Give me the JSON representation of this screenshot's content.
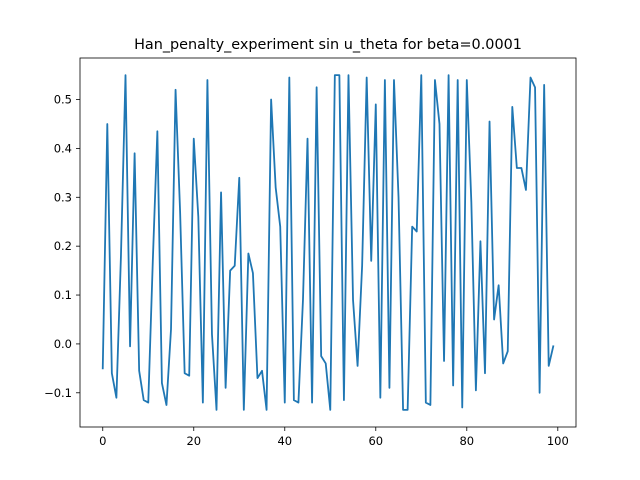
{
  "chart_data": {
    "type": "line",
    "title": "Han_penalty_experiment sin u_theta for beta=0.0001",
    "xlabel": "",
    "ylabel": "",
    "xlim": [
      -5,
      104
    ],
    "ylim": [
      -0.17,
      0.585
    ],
    "xticks": [
      0,
      20,
      40,
      60,
      80,
      100
    ],
    "yticks": [
      -0.1,
      0.0,
      0.1,
      0.2,
      0.3,
      0.4,
      0.5
    ],
    "ytick_labels": [
      "−0.1",
      "0.0",
      "0.1",
      "0.2",
      "0.3",
      "0.4",
      "0.5"
    ],
    "grid": false,
    "series": [
      {
        "color": "#1f77b4",
        "x": [
          0,
          1,
          2,
          3,
          4,
          5,
          6,
          7,
          8,
          9,
          10,
          11,
          12,
          13,
          14,
          15,
          16,
          17,
          18,
          19,
          20,
          21,
          22,
          23,
          24,
          25,
          26,
          27,
          28,
          29,
          30,
          31,
          32,
          33,
          34,
          35,
          36,
          37,
          38,
          39,
          40,
          41,
          42,
          43,
          44,
          45,
          46,
          47,
          48,
          49,
          50,
          51,
          52,
          53,
          54,
          55,
          56,
          57,
          58,
          59,
          60,
          61,
          62,
          63,
          64,
          65,
          66,
          67,
          68,
          69,
          70,
          71,
          72,
          73,
          74,
          75,
          76,
          77,
          78,
          79,
          80,
          81,
          82,
          83,
          84,
          85,
          86,
          87,
          88,
          89,
          90,
          91,
          92,
          93,
          94,
          95,
          96,
          97,
          98,
          99
        ],
        "values": [
          -0.05,
          0.45,
          -0.06,
          -0.11,
          0.18,
          0.55,
          -0.005,
          0.39,
          -0.055,
          -0.115,
          -0.12,
          0.17,
          0.435,
          -0.08,
          -0.125,
          0.03,
          0.52,
          0.27,
          -0.06,
          -0.065,
          0.42,
          0.26,
          -0.12,
          0.54,
          0.02,
          -0.135,
          0.31,
          -0.09,
          0.15,
          0.16,
          0.34,
          -0.135,
          0.185,
          0.145,
          -0.07,
          -0.055,
          -0.135,
          0.5,
          0.32,
          0.24,
          -0.12,
          0.545,
          -0.115,
          -0.12,
          0.09,
          0.42,
          -0.12,
          0.525,
          -0.025,
          -0.04,
          -0.135,
          0.55,
          0.55,
          -0.115,
          0.55,
          0.09,
          -0.045,
          0.16,
          0.545,
          0.17,
          0.49,
          -0.11,
          0.54,
          -0.09,
          0.54,
          0.3,
          -0.135,
          -0.135,
          0.24,
          0.23,
          0.55,
          -0.12,
          -0.125,
          0.54,
          0.45,
          -0.035,
          0.55,
          -0.085,
          0.54,
          -0.13,
          0.54,
          0.29,
          -0.095,
          0.21,
          -0.06,
          0.455,
          0.05,
          0.12,
          -0.04,
          -0.015,
          0.485,
          0.36,
          0.36,
          0.315,
          0.545,
          0.525,
          -0.1,
          0.53,
          -0.045,
          -0.005
        ]
      }
    ]
  }
}
